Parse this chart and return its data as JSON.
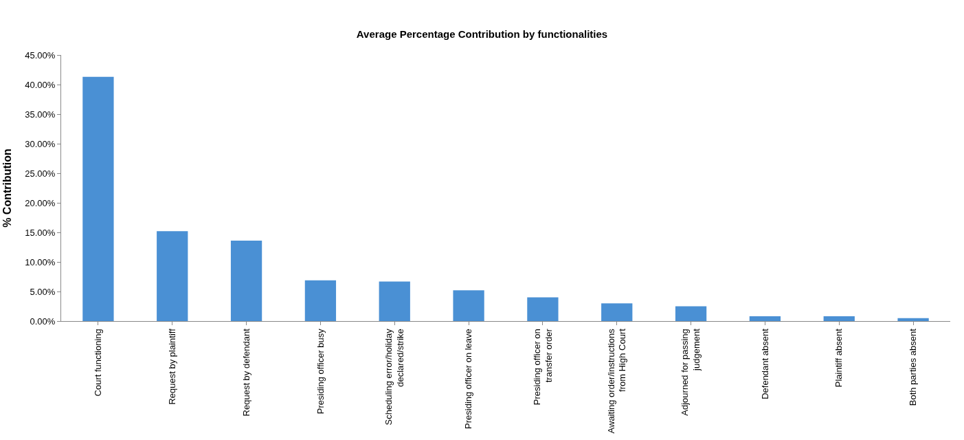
{
  "chart_data": {
    "type": "bar",
    "title": "Average Percentage Contribution by functionalities",
    "ylabel": "% Contribution",
    "categories": [
      "Court functioning",
      "Request by plaintiff",
      "Request by defendant",
      "Presiding officer busy",
      "Scheduling error/holiday declared/strike",
      "Presiding officer on leave",
      "Presiding officer on transfer order",
      "Awaiting order/instructions from High Court",
      "Adjourned for passing judgement",
      "Defendant absent",
      "Plaintiff absent",
      "Both parties absent"
    ],
    "values": [
      41.3,
      15.2,
      13.6,
      6.9,
      6.7,
      5.2,
      4.0,
      3.0,
      2.5,
      0.8,
      0.8,
      0.5
    ],
    "color": "#4a90d4",
    "ylim": [
      0,
      45
    ],
    "yticks": [
      {
        "value": 0,
        "label": "0.00%"
      },
      {
        "value": 5,
        "label": "5.00%"
      },
      {
        "value": 10,
        "label": "10.00%"
      },
      {
        "value": 15,
        "label": "15.00%"
      },
      {
        "value": 20,
        "label": "20.00%"
      },
      {
        "value": 25,
        "label": "25.00%"
      },
      {
        "value": 30,
        "label": "30.00%"
      },
      {
        "value": 35,
        "label": "35.00%"
      },
      {
        "value": 40,
        "label": "40.00%"
      },
      {
        "value": 45,
        "label": "45.00%"
      }
    ],
    "grid": false,
    "legend": false
  }
}
